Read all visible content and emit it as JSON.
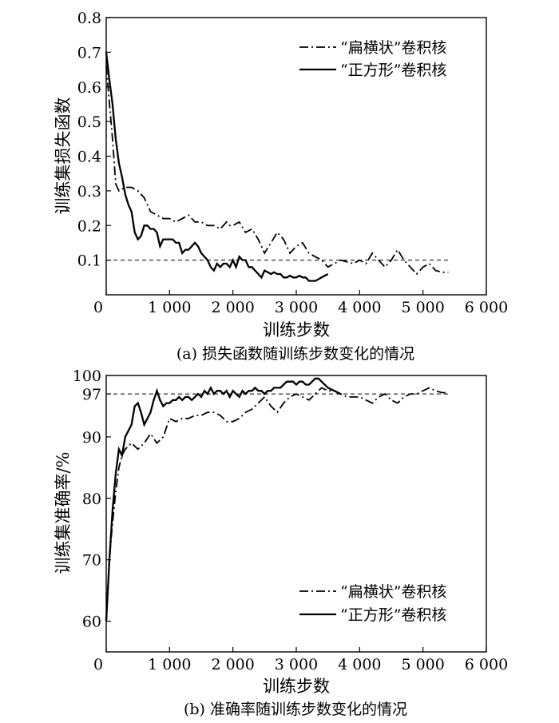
{
  "chart_data": [
    {
      "type": "line",
      "title": "(a) 损失函数随训练步数变化的情况",
      "xlabel": "训练步数",
      "ylabel": "训练集损失函数",
      "xlim": [
        0,
        6000
      ],
      "ylim": [
        0,
        0.8
      ],
      "x_ticks": [
        0,
        1000,
        2000,
        3000,
        4000,
        5000,
        6000
      ],
      "x_tick_labels": [
        "0",
        "1 000",
        "2 000",
        "3 000",
        "4 000",
        "5 000",
        "6 000"
      ],
      "y_ticks": [
        0.1,
        0.2,
        0.3,
        0.4,
        0.5,
        0.6,
        0.7,
        0.8
      ],
      "y_tick_labels": [
        "0.1",
        "0.2",
        "0.3",
        "0.4",
        "0.5",
        "0.6",
        "0.7",
        "0.8"
      ],
      "origin_label": "0",
      "reference_line": 0.1,
      "legend_position": "top-right",
      "series": [
        {
          "name": "“扁横状”卷积核",
          "style": "dash-dot",
          "x": [
            0,
            100,
            150,
            200,
            300,
            400,
            500,
            600,
            700,
            800,
            900,
            1000,
            1100,
            1200,
            1300,
            1400,
            1500,
            1600,
            1700,
            1800,
            1900,
            1950,
            2000,
            2100,
            2200,
            2300,
            2400,
            2500,
            2600,
            2700,
            2800,
            2900,
            3000,
            3100,
            3200,
            3300,
            3400,
            3500,
            3700,
            3900,
            4000,
            4100,
            4200,
            4300,
            4400,
            4500,
            4600,
            4700,
            4800,
            4900,
            5000,
            5100,
            5200,
            5300,
            5400
          ],
          "y": [
            0.66,
            0.45,
            0.32,
            0.3,
            0.31,
            0.31,
            0.3,
            0.28,
            0.24,
            0.23,
            0.22,
            0.22,
            0.21,
            0.22,
            0.23,
            0.21,
            0.21,
            0.2,
            0.2,
            0.19,
            0.21,
            0.2,
            0.2,
            0.21,
            0.18,
            0.19,
            0.16,
            0.12,
            0.15,
            0.18,
            0.16,
            0.12,
            0.14,
            0.15,
            0.12,
            0.11,
            0.1,
            0.08,
            0.1,
            0.09,
            0.1,
            0.09,
            0.12,
            0.1,
            0.08,
            0.1,
            0.13,
            0.1,
            0.08,
            0.06,
            0.08,
            0.09,
            0.07,
            0.065,
            0.065
          ]
        },
        {
          "name": "“正方形”卷积核",
          "style": "solid",
          "x": [
            0,
            50,
            100,
            150,
            200,
            250,
            300,
            350,
            400,
            450,
            500,
            550,
            600,
            650,
            700,
            750,
            800,
            850,
            900,
            950,
            1000,
            1050,
            1100,
            1150,
            1200,
            1250,
            1300,
            1350,
            1400,
            1450,
            1500,
            1550,
            1600,
            1650,
            1700,
            1750,
            1800,
            1850,
            1900,
            1950,
            2000,
            2050,
            2100,
            2150,
            2200,
            2250,
            2300,
            2350,
            2400,
            2450,
            2500,
            2550,
            2600,
            2650,
            2700,
            2750,
            2800,
            2850,
            2900,
            2950,
            3000,
            3050,
            3100,
            3150,
            3200,
            3250,
            3300,
            3350,
            3400,
            3450,
            3500
          ],
          "y": [
            0.7,
            0.62,
            0.55,
            0.45,
            0.38,
            0.34,
            0.29,
            0.26,
            0.24,
            0.18,
            0.16,
            0.17,
            0.2,
            0.2,
            0.19,
            0.19,
            0.18,
            0.14,
            0.16,
            0.16,
            0.16,
            0.16,
            0.15,
            0.15,
            0.12,
            0.13,
            0.13,
            0.14,
            0.15,
            0.14,
            0.12,
            0.11,
            0.1,
            0.08,
            0.07,
            0.09,
            0.08,
            0.09,
            0.09,
            0.08,
            0.1,
            0.08,
            0.11,
            0.1,
            0.1,
            0.08,
            0.08,
            0.07,
            0.06,
            0.05,
            0.07,
            0.065,
            0.06,
            0.065,
            0.06,
            0.06,
            0.05,
            0.05,
            0.055,
            0.05,
            0.05,
            0.055,
            0.05,
            0.05,
            0.04,
            0.04,
            0.04,
            0.045,
            0.05,
            0.055,
            0.06
          ]
        }
      ]
    },
    {
      "type": "line",
      "title": "(b) 准确率随训练步数变化的情况",
      "xlabel": "训练步数",
      "ylabel": "训练集准确率/%",
      "xlim": [
        0,
        6000
      ],
      "ylim": [
        55,
        100
      ],
      "x_ticks": [
        0,
        1000,
        2000,
        3000,
        4000,
        5000,
        6000
      ],
      "x_tick_labels": [
        "0",
        "1 000",
        "2 000",
        "3 000",
        "4 000",
        "5 000",
        "6 000"
      ],
      "y_ticks": [
        60,
        70,
        80,
        90,
        97,
        100
      ],
      "y_tick_labels": [
        "60",
        "70",
        "80",
        "90",
        "97",
        "100"
      ],
      "origin_label": "0",
      "reference_line": 97,
      "legend_position": "bottom-right",
      "series": [
        {
          "name": "“扁横状”卷积核",
          "style": "dash-dot",
          "x": [
            0,
            50,
            100,
            150,
            200,
            250,
            300,
            400,
            500,
            600,
            700,
            800,
            900,
            1000,
            1100,
            1200,
            1300,
            1400,
            1500,
            1600,
            1700,
            1800,
            1900,
            2000,
            2100,
            2200,
            2300,
            2400,
            2500,
            2600,
            2700,
            2800,
            2900,
            3000,
            3100,
            3200,
            3300,
            3400,
            3500,
            3600,
            3800,
            4000,
            4100,
            4200,
            4300,
            4400,
            4500,
            4600,
            4700,
            4800,
            4900,
            5000,
            5100,
            5200,
            5300,
            5400
          ],
          "y": [
            60,
            70,
            76,
            81,
            85,
            87,
            88,
            89,
            88,
            89,
            90.5,
            89,
            90,
            93,
            92.5,
            93,
            93,
            93.5,
            93.5,
            94,
            94,
            93.5,
            92.5,
            92.5,
            93,
            94,
            94.5,
            95.5,
            96.5,
            95,
            94,
            95.5,
            96.5,
            97,
            96.5,
            96,
            97,
            98,
            97.5,
            97.5,
            96.5,
            96.5,
            96,
            95.5,
            96.5,
            97,
            96,
            95.5,
            96.5,
            97,
            97,
            97.5,
            98,
            97.5,
            97.2,
            97.2
          ]
        },
        {
          "name": "“正方形”卷积核",
          "style": "solid",
          "x": [
            0,
            50,
            100,
            150,
            200,
            250,
            300,
            350,
            400,
            450,
            500,
            550,
            600,
            650,
            700,
            750,
            800,
            850,
            900,
            950,
            1000,
            1050,
            1100,
            1150,
            1200,
            1250,
            1300,
            1350,
            1400,
            1450,
            1500,
            1550,
            1600,
            1650,
            1700,
            1750,
            1800,
            1850,
            1900,
            1950,
            2000,
            2050,
            2100,
            2150,
            2200,
            2250,
            2300,
            2350,
            2400,
            2450,
            2500,
            2550,
            2600,
            2650,
            2700,
            2750,
            2800,
            2850,
            2900,
            2950,
            3000,
            3050,
            3100,
            3150,
            3200,
            3250,
            3300,
            3350,
            3400,
            3450,
            3500,
            3600,
            3700
          ],
          "y": [
            60,
            70,
            78,
            84,
            88,
            87,
            90,
            91,
            92,
            95,
            95.5,
            94,
            92,
            93,
            94,
            96,
            97.5,
            96,
            95,
            95.5,
            95.5,
            96,
            96,
            96.5,
            96,
            96.5,
            96.5,
            96,
            96.5,
            97,
            96.5,
            97.5,
            97,
            98,
            97,
            97.5,
            97.5,
            97,
            97.5,
            96.5,
            97.5,
            97,
            96.5,
            97.5,
            97,
            97.5,
            97.5,
            98,
            97.5,
            97.5,
            97,
            97.5,
            97.5,
            98,
            98,
            98,
            98.5,
            99,
            99,
            99,
            98.5,
            99,
            99,
            98.5,
            98.5,
            99,
            99.5,
            99.5,
            99,
            98.5,
            98,
            97.5,
            97
          ]
        }
      ]
    }
  ]
}
